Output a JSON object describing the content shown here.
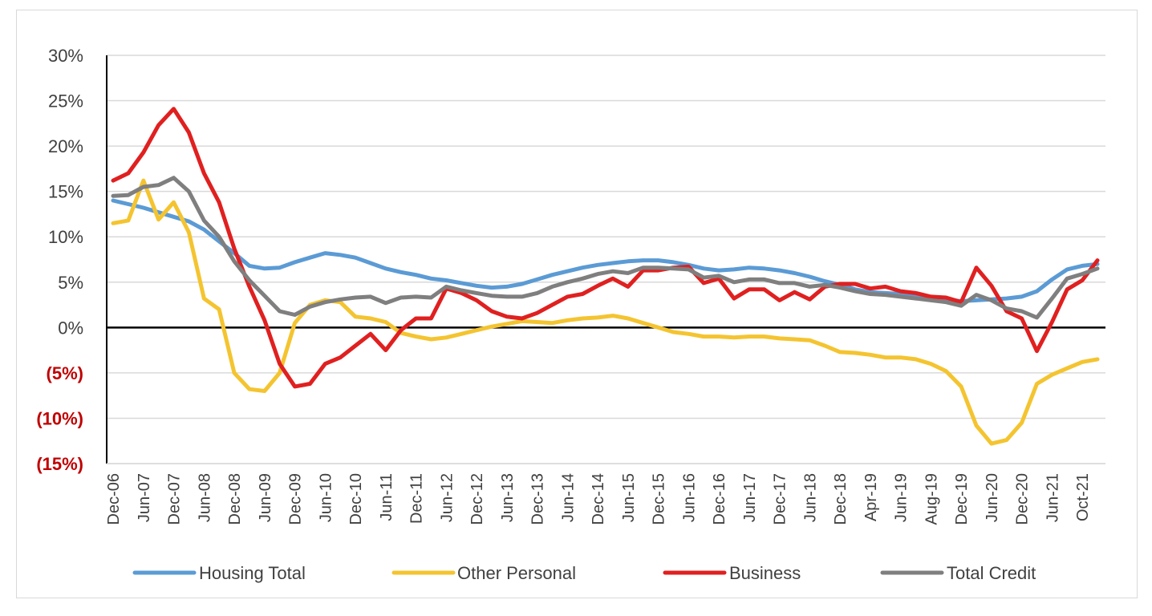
{
  "chart_data": {
    "type": "line",
    "title": "",
    "xlabel": "",
    "ylabel": "",
    "ylim": [
      -15,
      30
    ],
    "yticks": [
      {
        "value": 30,
        "label": "30%"
      },
      {
        "value": 25,
        "label": "25%"
      },
      {
        "value": 20,
        "label": "20%"
      },
      {
        "value": 15,
        "label": "15%"
      },
      {
        "value": 10,
        "label": "10%"
      },
      {
        "value": 5,
        "label": "5%"
      },
      {
        "value": 0,
        "label": "0%"
      },
      {
        "value": -5,
        "label": "(5%)"
      },
      {
        "value": -10,
        "label": "(10%)"
      },
      {
        "value": -15,
        "label": "(15%)"
      }
    ],
    "xticks": [
      {
        "index": 0,
        "label": "Dec-06"
      },
      {
        "index": 2,
        "label": "Jun-07"
      },
      {
        "index": 4,
        "label": "Dec-07"
      },
      {
        "index": 6,
        "label": "Jun-08"
      },
      {
        "index": 8,
        "label": "Dec-08"
      },
      {
        "index": 10,
        "label": "Jun-09"
      },
      {
        "index": 12,
        "label": "Dec-09"
      },
      {
        "index": 14,
        "label": "Jun-10"
      },
      {
        "index": 16,
        "label": "Dec-10"
      },
      {
        "index": 18,
        "label": "Jun-11"
      },
      {
        "index": 20,
        "label": "Dec-11"
      },
      {
        "index": 22,
        "label": "Jun-12"
      },
      {
        "index": 24,
        "label": "Dec-12"
      },
      {
        "index": 26,
        "label": "Jun-13"
      },
      {
        "index": 28,
        "label": "Dec-13"
      },
      {
        "index": 30,
        "label": "Jun-14"
      },
      {
        "index": 32,
        "label": "Dec-14"
      },
      {
        "index": 34,
        "label": "Jun-15"
      },
      {
        "index": 36,
        "label": "Dec-15"
      },
      {
        "index": 38,
        "label": "Jun-16"
      },
      {
        "index": 40,
        "label": "Dec-16"
      },
      {
        "index": 42,
        "label": "Jun-17"
      },
      {
        "index": 44,
        "label": "Dec-17"
      },
      {
        "index": 46,
        "label": "Jun-18"
      },
      {
        "index": 48,
        "label": "Dec-18"
      },
      {
        "index": 50,
        "label": "Apr-19"
      },
      {
        "index": 52,
        "label": "Jun-19"
      },
      {
        "index": 54,
        "label": "Aug-19"
      },
      {
        "index": 56,
        "label": "Dec-19"
      },
      {
        "index": 58,
        "label": "Jun-20"
      },
      {
        "index": 60,
        "label": "Dec-20"
      },
      {
        "index": 62,
        "label": "Jun-21"
      },
      {
        "index": 64,
        "label": "Oct-21"
      }
    ],
    "point_count": 66,
    "series": [
      {
        "name": "Housing Total",
        "color": "#5b9bd5",
        "values": [
          14.0,
          13.6,
          13.2,
          12.7,
          12.2,
          11.7,
          10.8,
          9.5,
          8.2,
          6.8,
          6.5,
          6.6,
          7.2,
          7.7,
          8.2,
          8.0,
          7.7,
          7.1,
          6.5,
          6.1,
          5.8,
          5.4,
          5.2,
          4.9,
          4.6,
          4.4,
          4.5,
          4.8,
          5.3,
          5.8,
          6.2,
          6.6,
          6.9,
          7.1,
          7.3,
          7.4,
          7.4,
          7.2,
          6.9,
          6.5,
          6.3,
          6.4,
          6.6,
          6.5,
          6.3,
          6.0,
          5.6,
          5.1,
          4.7,
          4.2,
          3.9,
          3.8,
          3.7,
          3.5,
          3.3,
          3.1,
          2.9,
          3.0,
          3.1,
          3.2,
          3.4,
          4.0,
          5.3,
          6.4,
          6.8,
          7.0
        ]
      },
      {
        "name": "Other Personal",
        "color": "#f4c430",
        "values": [
          11.5,
          11.8,
          16.2,
          11.9,
          13.8,
          10.5,
          3.2,
          2.0,
          -5.0,
          -6.8,
          -7.0,
          -5.0,
          0.5,
          2.5,
          3.0,
          2.8,
          1.2,
          1.0,
          0.6,
          -0.6,
          -1.0,
          -1.3,
          -1.1,
          -0.7,
          -0.3,
          0.1,
          0.4,
          0.7,
          0.6,
          0.5,
          0.8,
          1.0,
          1.1,
          1.3,
          1.0,
          0.5,
          0.0,
          -0.5,
          -0.7,
          -1.0,
          -1.0,
          -1.1,
          -1.0,
          -1.0,
          -1.2,
          -1.3,
          -1.4,
          -2.0,
          -2.7,
          -2.8,
          -3.0,
          -3.3,
          -3.3,
          -3.5,
          -4.0,
          -4.8,
          -6.5,
          -10.8,
          -12.8,
          -12.4,
          -10.5,
          -6.2,
          -5.2,
          -4.5,
          -3.8,
          -3.5
        ]
      },
      {
        "name": "Business",
        "color": "#e02020",
        "values": [
          16.2,
          17.0,
          19.3,
          22.3,
          24.1,
          21.5,
          17.0,
          13.8,
          8.7,
          4.5,
          0.8,
          -4.0,
          -6.5,
          -6.2,
          -4.0,
          -3.3,
          -2.0,
          -0.7,
          -2.5,
          -0.3,
          1.0,
          1.0,
          4.3,
          3.8,
          3.0,
          1.8,
          1.2,
          1.0,
          1.6,
          2.5,
          3.4,
          3.7,
          4.6,
          5.4,
          4.5,
          6.3,
          6.3,
          6.6,
          6.7,
          4.9,
          5.4,
          3.2,
          4.2,
          4.2,
          3.0,
          3.9,
          3.1,
          4.5,
          4.8,
          4.8,
          4.3,
          4.5,
          4.0,
          3.8,
          3.4,
          3.3,
          2.8,
          6.6,
          4.6,
          1.8,
          1.0,
          -2.6,
          0.6,
          4.2,
          5.2,
          7.4
        ]
      },
      {
        "name": "Total Credit",
        "color": "#7f7f7f",
        "values": [
          14.5,
          14.6,
          15.5,
          15.7,
          16.5,
          15.0,
          11.8,
          10.0,
          7.3,
          5.2,
          3.5,
          1.8,
          1.4,
          2.3,
          2.8,
          3.1,
          3.3,
          3.4,
          2.7,
          3.3,
          3.4,
          3.3,
          4.5,
          4.1,
          3.8,
          3.5,
          3.4,
          3.4,
          3.8,
          4.5,
          5.0,
          5.4,
          5.9,
          6.2,
          6.0,
          6.6,
          6.6,
          6.5,
          6.4,
          5.5,
          5.7,
          5.0,
          5.3,
          5.3,
          4.9,
          4.9,
          4.5,
          4.7,
          4.4,
          4.0,
          3.7,
          3.6,
          3.4,
          3.2,
          3.0,
          2.8,
          2.4,
          3.6,
          3.0,
          2.1,
          1.8,
          1.1,
          3.2,
          5.4,
          5.9,
          6.5
        ]
      }
    ],
    "legend": {
      "placement": "bottom",
      "entries": [
        "Housing Total",
        "Other Personal",
        "Business",
        "Total Credit"
      ]
    }
  }
}
